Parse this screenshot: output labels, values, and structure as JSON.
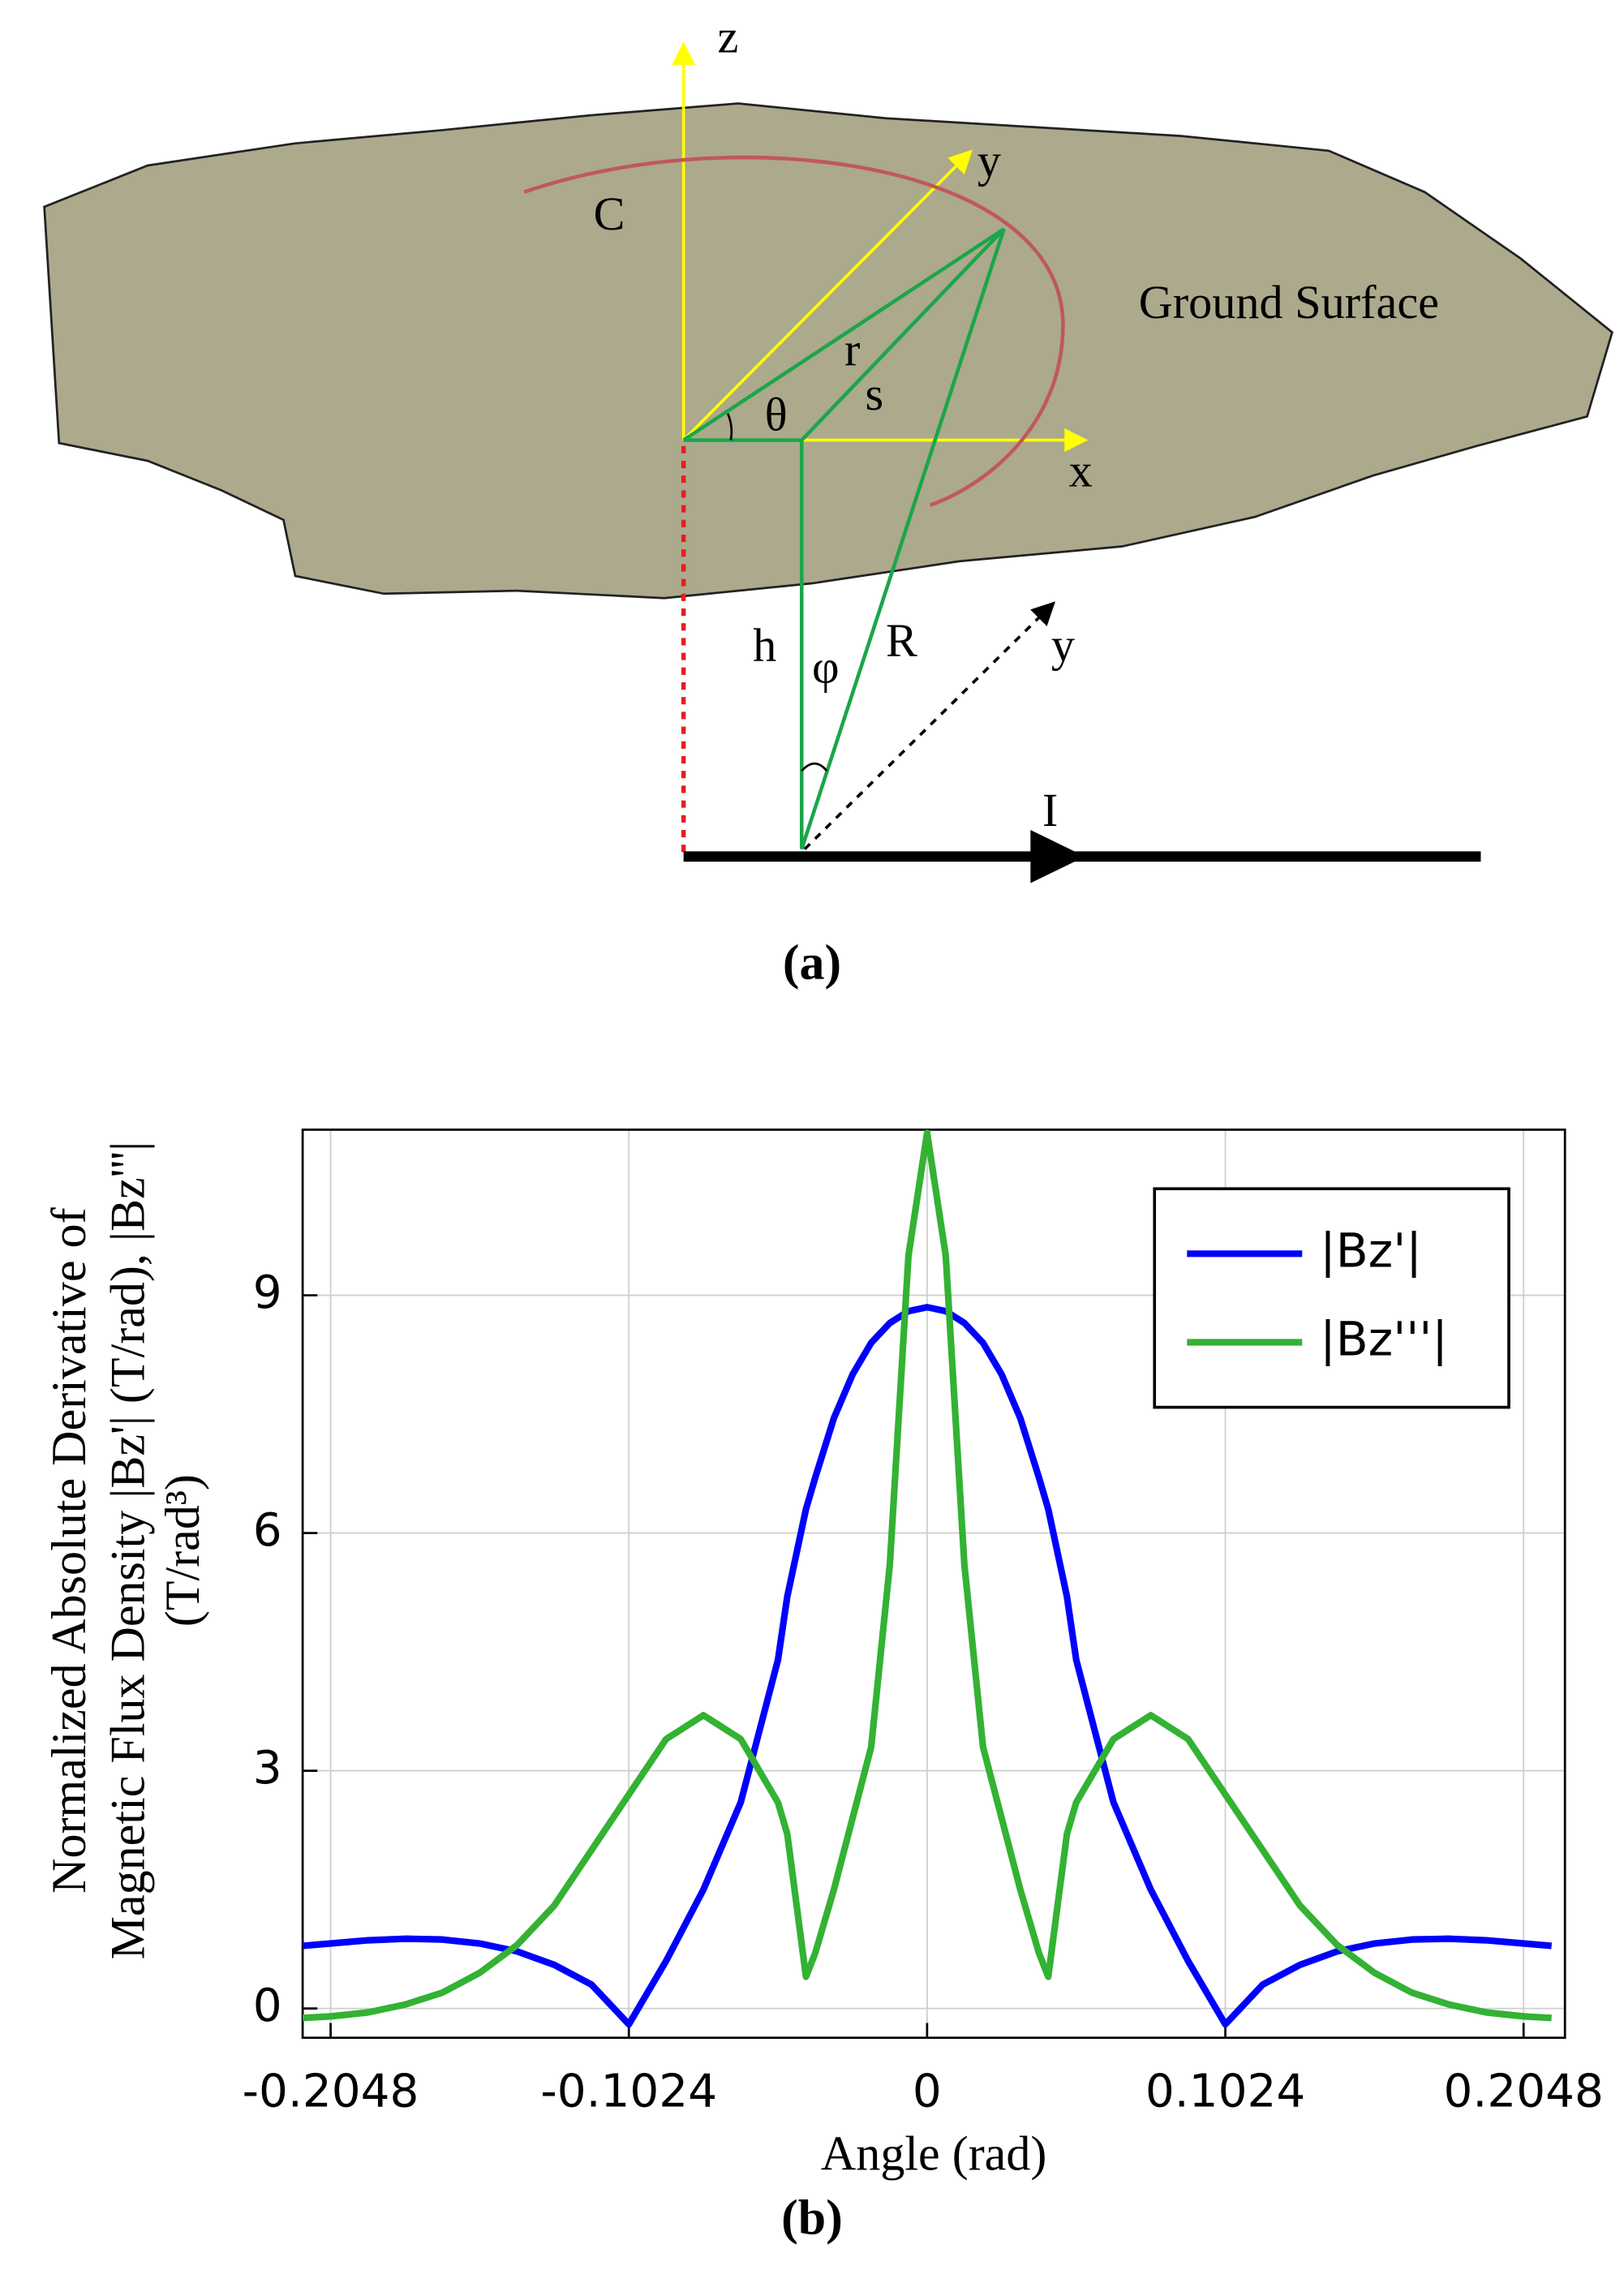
{
  "diagram": {
    "labels": {
      "z": "z",
      "y_axis": "y",
      "curve": "C",
      "surface": "Ground Surface",
      "r": "r",
      "s": "s",
      "theta": "θ",
      "x_axis": "x",
      "h": "h",
      "phi": "φ",
      "R": "R",
      "y_dir": "y",
      "current": "I"
    },
    "caption": "(a)"
  },
  "chart_data": {
    "type": "line",
    "caption": "(b)",
    "xlabel": "Angle (rad)",
    "ylabel": [
      "Normalized Absolute Derivative of",
      "Magnetic Flux Density |Bz'| (T/rad), |Bz'''|",
      "(T/rad³)"
    ],
    "x": [
      -0.2144,
      -0.2048,
      -0.192,
      -0.1792,
      -0.1664,
      -0.1536,
      -0.1408,
      -0.128,
      -0.1152,
      -0.1024,
      -0.0896,
      -0.0768,
      -0.064,
      -0.0512,
      -0.048,
      -0.0416,
      -0.0384,
      -0.032,
      -0.0256,
      -0.0192,
      -0.0128,
      -0.0064,
      0,
      0.0064,
      0.0128,
      0.0192,
      0.0256,
      0.032,
      0.0384,
      0.0416,
      0.048,
      0.0512,
      0.064,
      0.0768,
      0.0896,
      0.1024,
      0.1152,
      0.128,
      0.1408,
      0.1536,
      0.1664,
      0.1792,
      0.192,
      0.2048,
      0.2144
    ],
    "series": [
      {
        "name": "|Bz'|",
        "color": "#0000ff",
        "values": [
          0.79,
          0.82,
          0.86,
          0.88,
          0.87,
          0.82,
          0.72,
          0.55,
          0.3,
          -0.2,
          0.6,
          1.5,
          2.6,
          4.4,
          5.2,
          6.3,
          6.7,
          7.45,
          8.0,
          8.4,
          8.65,
          8.8,
          8.85,
          8.8,
          8.65,
          8.4,
          8.0,
          7.45,
          6.7,
          6.3,
          5.2,
          4.4,
          2.6,
          1.5,
          0.6,
          -0.2,
          0.3,
          0.55,
          0.72,
          0.82,
          0.87,
          0.88,
          0.86,
          0.82,
          0.79
        ]
      },
      {
        "name": "|Bz'''|",
        "color": "#33b233",
        "values": [
          -0.12,
          -0.1,
          -0.05,
          0.05,
          0.2,
          0.45,
          0.8,
          1.3,
          2.0,
          2.7,
          3.4,
          3.7,
          3.4,
          2.6,
          2.2,
          0.4,
          0.7,
          1.5,
          2.4,
          3.3,
          5.6,
          9.5,
          11.05,
          9.5,
          5.6,
          3.3,
          2.4,
          1.5,
          0.7,
          0.4,
          2.2,
          2.6,
          3.4,
          3.7,
          3.4,
          2.7,
          2.0,
          1.3,
          0.8,
          0.45,
          0.2,
          0.05,
          -0.05,
          -0.1,
          -0.12
        ]
      }
    ],
    "xlim": [
      -0.2144,
      0.219
    ],
    "ylim": [
      -0.37,
      11.09
    ],
    "xticks": [
      -0.2048,
      -0.1024,
      0,
      0.1024,
      0.2048
    ],
    "yticks": [
      0,
      3,
      6,
      9
    ],
    "grid": true,
    "legend": "upper right"
  }
}
